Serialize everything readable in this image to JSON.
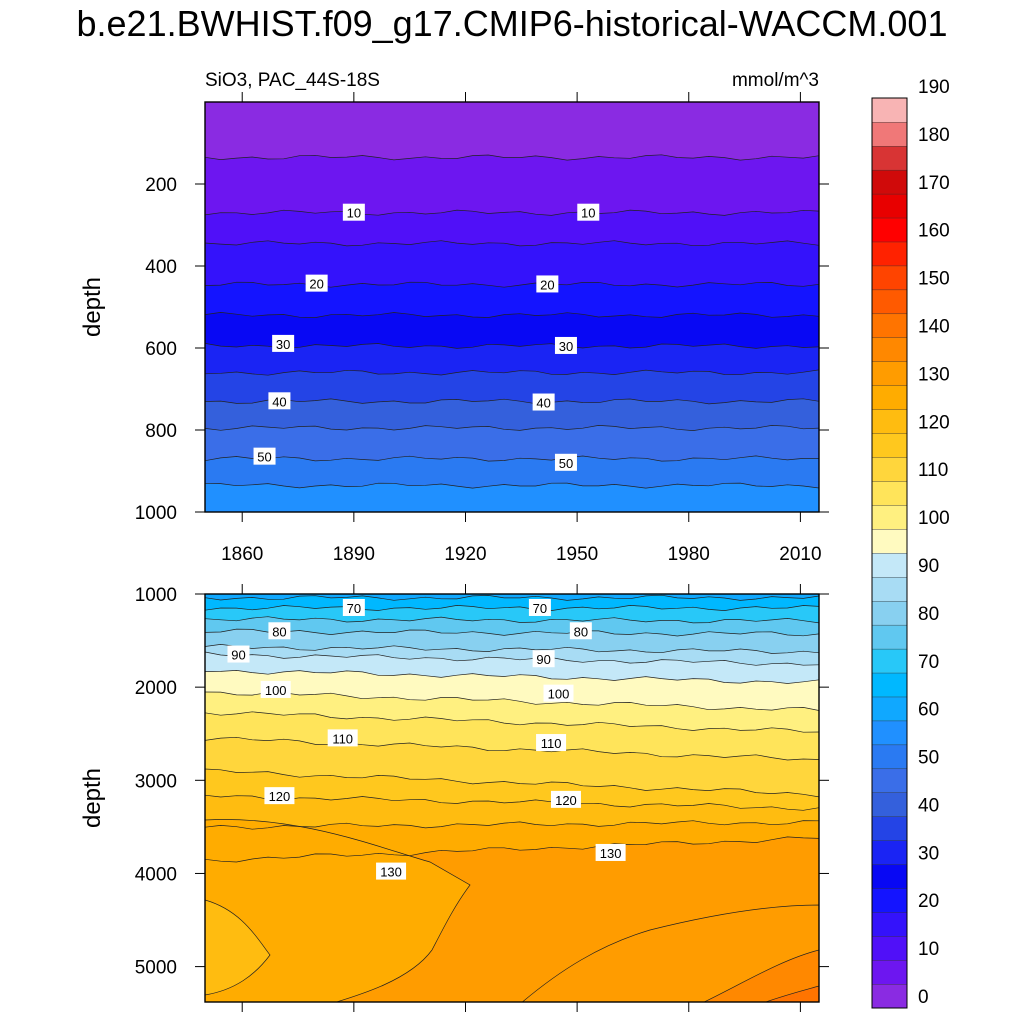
{
  "title": "b.e21.BWHIST.f09_g17.CMIP6-historical-WACCM.001",
  "colorbar": {
    "levels": [
      0,
      5,
      10,
      15,
      20,
      25,
      30,
      35,
      40,
      45,
      50,
      55,
      60,
      65,
      70,
      75,
      80,
      85,
      90,
      95,
      100,
      105,
      110,
      115,
      120,
      125,
      130,
      135,
      140,
      145,
      150,
      155,
      160,
      165,
      170,
      175,
      180,
      185,
      190
    ],
    "tick_labels": [
      "0",
      "10",
      "20",
      "30",
      "40",
      "50",
      "60",
      "70",
      "80",
      "90",
      "100",
      "110",
      "120",
      "130",
      "140",
      "150",
      "160",
      "170",
      "180",
      "190"
    ],
    "colors": [
      "#8a2be2",
      "#6d16f0",
      "#5010f8",
      "#3412fb",
      "#1414ff",
      "#0808f4",
      "#1a24f4",
      "#2444e6",
      "#3460dc",
      "#3a6ee8",
      "#2a7af2",
      "#2090ff",
      "#10a8ff",
      "#00b8ff",
      "#28c8f8",
      "#60c8f0",
      "#88d0f0",
      "#a8dcf4",
      "#c4e8f8",
      "#fffac0",
      "#fff080",
      "#ffe45a",
      "#ffd63c",
      "#ffc81e",
      "#ffbc10",
      "#ffac00",
      "#ff9c00",
      "#ff8800",
      "#ff7400",
      "#ff5a00",
      "#ff4400",
      "#ff2200",
      "#ff0000",
      "#e80000",
      "#d00a0a",
      "#d83434",
      "#f07878",
      "#f8b4b4"
    ]
  },
  "chart_data": [
    {
      "type": "heatmap",
      "subtitle_left": "SiO3, PAC_44S-18S",
      "subtitle_right": "mmol/m^3",
      "xlabel": "",
      "ylabel": "depth",
      "xlim": [
        1850,
        2015
      ],
      "ylim": [
        1000,
        0
      ],
      "x_ticks": [
        "1860",
        "1890",
        "1920",
        "1950",
        "1980",
        "2010"
      ],
      "y_ticks": [
        "200",
        "400",
        "600",
        "800",
        "1000"
      ],
      "x_tick_values": [
        1860,
        1890,
        1920,
        1950,
        1980,
        2010
      ],
      "y_tick_values": [
        200,
        400,
        600,
        800,
        1000
      ],
      "contours": [
        {
          "value": 5,
          "depth": 135
        },
        {
          "value": 10,
          "depth": 270
        },
        {
          "value": 15,
          "depth": 345
        },
        {
          "value": 20,
          "depth": 445
        },
        {
          "value": 25,
          "depth": 520
        },
        {
          "value": 30,
          "depth": 595
        },
        {
          "value": 35,
          "depth": 660
        },
        {
          "value": 40,
          "depth": 730
        },
        {
          "value": 45,
          "depth": 795
        },
        {
          "value": 50,
          "depth": 870
        },
        {
          "value": 55,
          "depth": 935
        }
      ],
      "contour_labels": [
        {
          "text": "10",
          "x": 1890,
          "depth": 270
        },
        {
          "text": "10",
          "x": 1953,
          "depth": 270
        },
        {
          "text": "20",
          "x": 1880,
          "depth": 443
        },
        {
          "text": "20",
          "x": 1942,
          "depth": 445
        },
        {
          "text": "30",
          "x": 1871,
          "depth": 590
        },
        {
          "text": "30",
          "x": 1947,
          "depth": 595
        },
        {
          "text": "40",
          "x": 1870,
          "depth": 730
        },
        {
          "text": "40",
          "x": 1941,
          "depth": 733
        },
        {
          "text": "50",
          "x": 1866,
          "depth": 865
        },
        {
          "text": "50",
          "x": 1947,
          "depth": 880
        }
      ]
    },
    {
      "type": "heatmap",
      "xlabel": "",
      "ylabel": "depth",
      "xlim": [
        1850,
        2015
      ],
      "ylim": [
        5380,
        1000
      ],
      "y_ticks": [
        "1000",
        "2000",
        "3000",
        "4000",
        "5000"
      ],
      "y_tick_values": [
        1000,
        2000,
        3000,
        4000,
        5000
      ],
      "contours": [
        {
          "value": 65,
          "depth_start": 1040,
          "depth_end": 1040
        },
        {
          "value": 70,
          "depth_start": 1150,
          "depth_end": 1150
        },
        {
          "value": 75,
          "depth_start": 1270,
          "depth_end": 1290
        },
        {
          "value": 80,
          "depth_start": 1400,
          "depth_end": 1430
        },
        {
          "value": 85,
          "depth_start": 1570,
          "depth_end": 1620
        },
        {
          "value": 90,
          "depth_start": 1650,
          "depth_end": 1750
        },
        {
          "value": 95,
          "depth_start": 1820,
          "depth_end": 1950
        },
        {
          "value": 100,
          "depth_start": 2050,
          "depth_end": 2250
        },
        {
          "value": 105,
          "depth_start": 2270,
          "depth_end": 2480
        },
        {
          "value": 110,
          "depth_start": 2550,
          "depth_end": 2780
        },
        {
          "value": 115,
          "depth_start": 2900,
          "depth_end": 3150
        },
        {
          "value": 120,
          "depth_start": 3170,
          "depth_end": 3300
        },
        {
          "value": 125,
          "depth_start": 3500,
          "depth_end": 3450
        },
        {
          "value": 130,
          "depth_start": 3860,
          "depth_end": 3620
        }
      ],
      "contour_labels": [
        {
          "text": "70",
          "x": 1890,
          "depth": 1150
        },
        {
          "text": "70",
          "x": 1940,
          "depth": 1150
        },
        {
          "text": "80",
          "x": 1870,
          "depth": 1400
        },
        {
          "text": "80",
          "x": 1951,
          "depth": 1400
        },
        {
          "text": "90",
          "x": 1859,
          "depth": 1650
        },
        {
          "text": "90",
          "x": 1941,
          "depth": 1700
        },
        {
          "text": "100",
          "x": 1869,
          "depth": 2030
        },
        {
          "text": "100",
          "x": 1945,
          "depth": 2070
        },
        {
          "text": "110",
          "x": 1887,
          "depth": 2550
        },
        {
          "text": "110",
          "x": 1943,
          "depth": 2600
        },
        {
          "text": "120",
          "x": 1870,
          "depth": 3170
        },
        {
          "text": "120",
          "x": 1947,
          "depth": 3210
        },
        {
          "text": "130",
          "x": 1900,
          "depth": 3980
        },
        {
          "text": "130",
          "x": 1959,
          "depth": 3780
        }
      ]
    }
  ]
}
